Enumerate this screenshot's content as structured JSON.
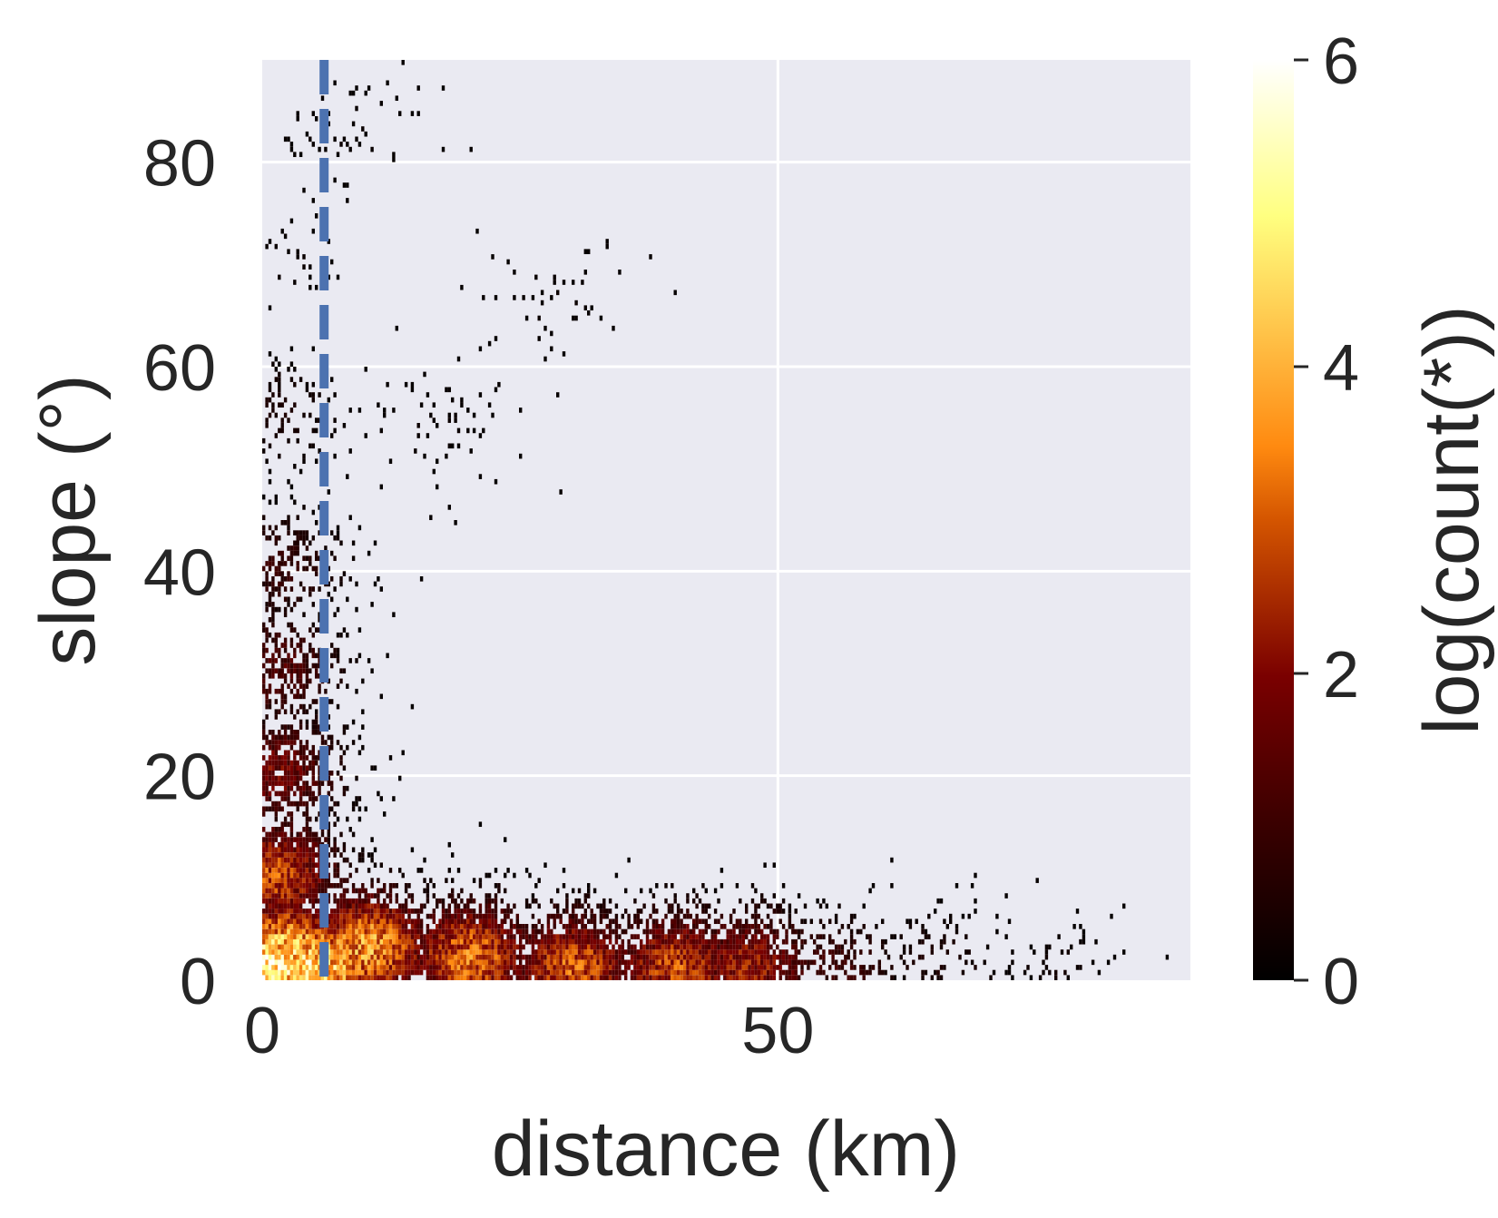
{
  "chart_data": {
    "type": "heatmap",
    "xlabel": "distance (km)",
    "ylabel": "slope (°)",
    "colorbar_label": "log(count(*))",
    "xlim": [
      0,
      90
    ],
    "ylim": [
      0,
      90
    ],
    "xticks": [
      0,
      50
    ],
    "yticks": [
      0,
      20,
      40,
      60,
      80
    ],
    "colorbar_range": [
      0,
      6
    ],
    "colorbar_ticks": [
      0,
      2,
      4,
      6
    ],
    "colormap": "afmhot",
    "grid": true,
    "background_color": "#eaeaf2",
    "reference_line": {
      "orientation": "vertical",
      "x": 6,
      "style": "dashed",
      "color": "#4c72b0"
    },
    "density_summary": {
      "description_points": [
        {
          "x": 0.5,
          "y": 1,
          "value": 5.5
        },
        {
          "x": 2,
          "y": 2,
          "value": 5.0
        },
        {
          "x": 5,
          "y": 1,
          "value": 5.0
        },
        {
          "x": 10,
          "y": 3,
          "value": 4.0
        },
        {
          "x": 20,
          "y": 2,
          "value": 3.5
        },
        {
          "x": 30,
          "y": 1,
          "value": 3.2
        },
        {
          "x": 40,
          "y": 1,
          "value": 3.0
        },
        {
          "x": 47,
          "y": 1,
          "value": 2.5
        },
        {
          "x": 55,
          "y": 0.5,
          "value": 1.2
        },
        {
          "x": 65,
          "y": 0.5,
          "value": 0.6
        },
        {
          "x": 77,
          "y": 0.5,
          "value": 0.3
        },
        {
          "x": 1,
          "y": 10,
          "value": 3.0
        },
        {
          "x": 1,
          "y": 20,
          "value": 2.0
        },
        {
          "x": 1,
          "y": 30,
          "value": 1.5
        },
        {
          "x": 1,
          "y": 40,
          "value": 1.0
        },
        {
          "x": 1,
          "y": 55,
          "value": 0.5
        },
        {
          "x": 1,
          "y": 70,
          "value": 0.2
        },
        {
          "x": 28,
          "y": 66,
          "value": 0.2
        },
        {
          "x": 16,
          "y": 54,
          "value": 0.2
        },
        {
          "x": 7,
          "y": 83,
          "value": 0.2
        }
      ]
    }
  }
}
